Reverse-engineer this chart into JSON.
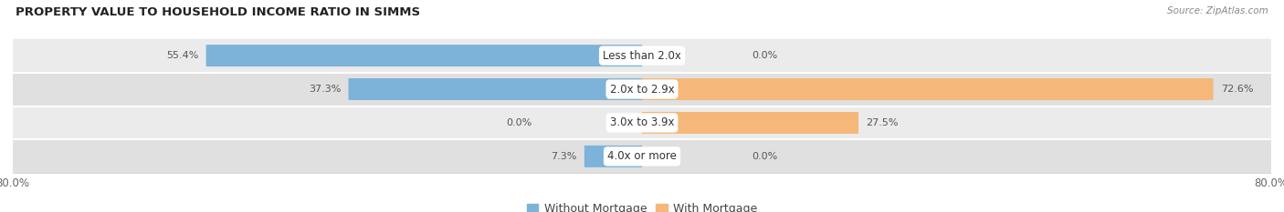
{
  "title": "PROPERTY VALUE TO HOUSEHOLD INCOME RATIO IN SIMMS",
  "source": "Source: ZipAtlas.com",
  "categories": [
    "Less than 2.0x",
    "2.0x to 2.9x",
    "3.0x to 3.9x",
    "4.0x or more"
  ],
  "without_mortgage": [
    55.4,
    37.3,
    0.0,
    7.3
  ],
  "with_mortgage": [
    0.0,
    72.6,
    27.5,
    0.0
  ],
  "blue_color": "#7db3d8",
  "orange_color": "#f5b87a",
  "row_bg_colors": [
    "#ebebeb",
    "#e0e0e0"
  ],
  "xlim": [
    -80,
    80
  ],
  "bar_height": 0.58,
  "title_fontsize": 9.5,
  "label_fontsize": 8.5,
  "value_fontsize": 8,
  "tick_fontsize": 8.5,
  "legend_fontsize": 9,
  "figsize": [
    14.06,
    2.33
  ],
  "dpi": 100
}
